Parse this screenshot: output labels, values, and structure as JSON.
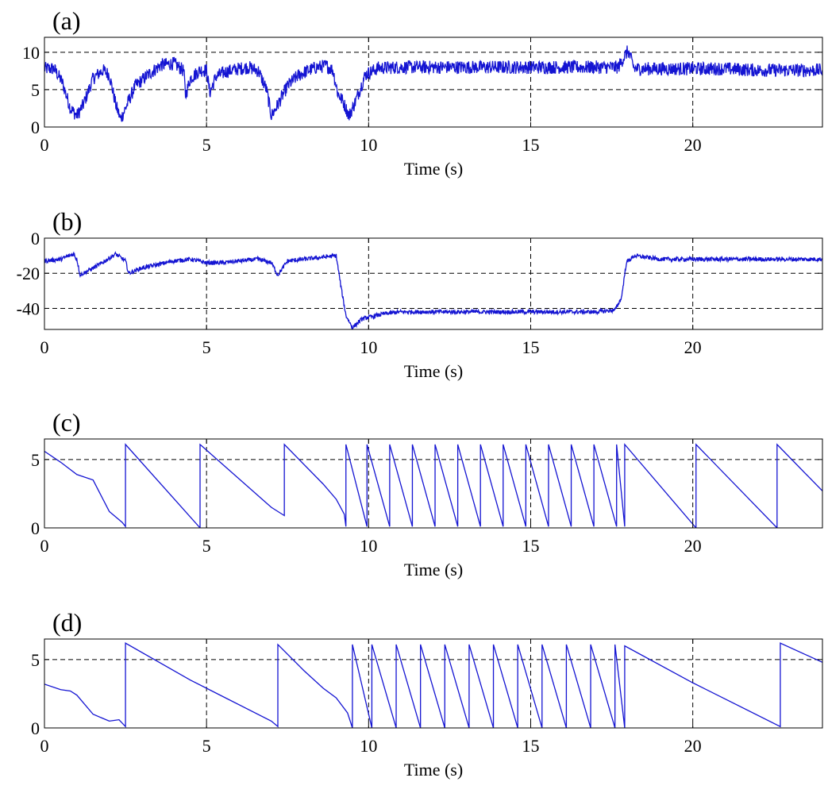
{
  "figure": {
    "line_color": "#1414d2",
    "grid_color": "#000000"
  },
  "chart_data": [
    {
      "type": "line",
      "panel_label": "(a)",
      "xlabel": "Time (s)",
      "ylabel": "",
      "xlim": [
        0,
        24
      ],
      "ylim": [
        0,
        12
      ],
      "xticks": [
        0,
        5,
        10,
        15,
        20
      ],
      "yticks": [
        0,
        5,
        10
      ],
      "xgrid": [
        5,
        10,
        15,
        20
      ],
      "ygrid": [
        5,
        10
      ],
      "noise": 0.9,
      "x": [
        0,
        0.3,
        0.55,
        0.8,
        1.0,
        1.2,
        1.5,
        1.8,
        2.0,
        2.2,
        2.35,
        2.5,
        2.8,
        3.2,
        3.6,
        4.0,
        4.3,
        4.35,
        4.5,
        4.8,
        5.0,
        5.1,
        5.3,
        5.6,
        6.0,
        6.3,
        6.6,
        6.85,
        7.0,
        7.2,
        7.5,
        7.8,
        8.1,
        8.4,
        8.7,
        8.9,
        9.05,
        9.2,
        9.4,
        9.6,
        9.9,
        10.3,
        11,
        12,
        13,
        14,
        15,
        16,
        17,
        17.7,
        17.9,
        18.0,
        18.2,
        19,
        20,
        21,
        22,
        23,
        24
      ],
      "y": [
        7.8,
        7.8,
        6.0,
        2.5,
        1.5,
        3.0,
        6.5,
        7.6,
        7.0,
        3.0,
        1.0,
        2.5,
        5.5,
        7.0,
        8.3,
        8.5,
        7.5,
        4.2,
        6.5,
        7.6,
        7.6,
        4.6,
        6.8,
        7.4,
        7.8,
        8.0,
        7.5,
        5.0,
        1.5,
        3.0,
        5.5,
        6.8,
        7.5,
        8.0,
        8.2,
        7.6,
        4.5,
        3.5,
        1.5,
        3.5,
        7.0,
        7.9,
        8.0,
        8.0,
        8.0,
        8.0,
        8.0,
        8.0,
        8.0,
        8.0,
        9.5,
        10.2,
        7.8,
        7.8,
        7.8,
        7.8,
        7.6,
        7.6,
        7.6
      ]
    },
    {
      "type": "line",
      "panel_label": "(b)",
      "xlabel": "Time (s)",
      "ylabel": "",
      "xlim": [
        0,
        24
      ],
      "ylim": [
        -52,
        0
      ],
      "xticks": [
        0,
        5,
        10,
        15,
        20
      ],
      "yticks": [
        0,
        -20,
        -40
      ],
      "ytick_labels": [
        "0",
        "-20",
        "-40"
      ],
      "xgrid": [
        5,
        10,
        15,
        20
      ],
      "ygrid": [
        -20,
        -40
      ],
      "noise": 1.2,
      "x": [
        0,
        0.5,
        0.9,
        1.0,
        1.1,
        1.3,
        1.7,
        2.2,
        2.5,
        2.6,
        3.0,
        3.5,
        4.0,
        4.5,
        5.0,
        5.5,
        6.0,
        6.6,
        7.0,
        7.2,
        7.5,
        8.0,
        8.5,
        9.0,
        9.15,
        9.3,
        9.5,
        9.8,
        10.5,
        11,
        12,
        13,
        14,
        15,
        16,
        17,
        17.6,
        17.8,
        17.95,
        18.2,
        19,
        20,
        21,
        22,
        23,
        24
      ],
      "y": [
        -13,
        -12,
        -9,
        -12,
        -21,
        -19,
        -15,
        -9,
        -13,
        -20,
        -17,
        -15,
        -13,
        -12,
        -14,
        -14,
        -13,
        -12,
        -14,
        -21,
        -13,
        -12,
        -11,
        -10,
        -28,
        -44,
        -51,
        -46,
        -43,
        -42,
        -42,
        -42,
        -42,
        -42,
        -42,
        -42,
        -41,
        -34,
        -14,
        -10,
        -12,
        -12,
        -12,
        -12,
        -12,
        -12
      ]
    },
    {
      "type": "line",
      "panel_label": "(c)",
      "xlabel": "Time (s)",
      "ylabel": "",
      "xlim": [
        0,
        24
      ],
      "ylim": [
        0,
        6.5
      ],
      "xticks": [
        0,
        5,
        10,
        15,
        20
      ],
      "yticks": [
        0,
        5
      ],
      "xgrid": [
        5,
        10,
        15,
        20
      ],
      "ygrid": [
        5
      ],
      "noise": 0,
      "x": [
        0,
        0.5,
        1.0,
        1.5,
        2.0,
        2.4,
        2.5,
        2.5,
        4.8,
        4.8,
        7.0,
        7.4,
        7.4,
        8.6,
        9.0,
        9.25,
        9.3,
        9.3,
        9.95,
        9.95,
        10.65,
        10.65,
        11.35,
        11.35,
        12.05,
        12.05,
        12.75,
        12.75,
        13.45,
        13.45,
        14.15,
        14.15,
        14.85,
        14.85,
        15.55,
        15.55,
        16.25,
        16.25,
        16.95,
        16.95,
        17.65,
        17.65,
        17.9,
        17.9,
        20.1,
        20.1,
        22.6,
        22.6,
        24
      ],
      "y": [
        5.6,
        4.8,
        3.9,
        3.5,
        1.2,
        0.4,
        0.1,
        6.1,
        0.0,
        6.1,
        1.5,
        0.9,
        6.1,
        3.2,
        2.1,
        1.0,
        0.1,
        6.1,
        0.1,
        6.1,
        0.1,
        6.1,
        0.1,
        6.1,
        0.1,
        6.1,
        0.1,
        6.1,
        0.1,
        6.1,
        0.1,
        6.1,
        0.1,
        6.1,
        0.1,
        6.1,
        0.1,
        6.1,
        0.1,
        6.1,
        0.1,
        6.1,
        0.1,
        6.1,
        0.0,
        6.1,
        0.0,
        6.1,
        2.7
      ]
    },
    {
      "type": "line",
      "panel_label": "(d)",
      "xlabel": "Time (s)",
      "ylabel": "",
      "xlim": [
        0,
        24
      ],
      "ylim": [
        0,
        6.5
      ],
      "xticks": [
        0,
        5,
        10,
        15,
        20
      ],
      "yticks": [
        0,
        5
      ],
      "xgrid": [
        5,
        10,
        15,
        20
      ],
      "ygrid": [
        5
      ],
      "noise": 0,
      "x": [
        0,
        0.5,
        0.8,
        1.0,
        1.5,
        2.0,
        2.3,
        2.5,
        2.5,
        4.5,
        5.5,
        7.0,
        7.2,
        7.2,
        8.0,
        8.6,
        9.0,
        9.35,
        9.5,
        9.5,
        10.1,
        10.1,
        10.85,
        10.85,
        11.6,
        11.6,
        12.35,
        12.35,
        13.1,
        13.1,
        13.85,
        13.85,
        14.6,
        14.6,
        15.35,
        15.35,
        16.1,
        16.1,
        16.85,
        16.85,
        17.6,
        17.6,
        17.9,
        17.9,
        20.0,
        22.7,
        22.7,
        24
      ],
      "y": [
        3.2,
        2.8,
        2.7,
        2.4,
        1.0,
        0.5,
        0.6,
        0.1,
        6.2,
        3.5,
        2.3,
        0.5,
        0.1,
        6.1,
        4.2,
        2.9,
        2.2,
        1.1,
        0.0,
        6.1,
        0.0,
        6.1,
        0.0,
        6.1,
        0.0,
        6.1,
        0.0,
        6.1,
        0.0,
        6.1,
        0.0,
        6.1,
        0.0,
        6.1,
        0.0,
        6.1,
        0.0,
        6.1,
        0.0,
        6.1,
        0.0,
        6.1,
        0.0,
        6.0,
        3.3,
        0.1,
        6.2,
        4.8
      ]
    }
  ]
}
